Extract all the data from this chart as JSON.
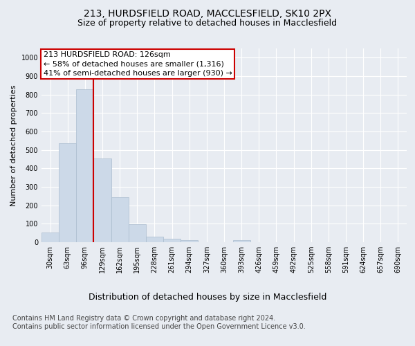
{
  "title_line1": "213, HURDSFIELD ROAD, MACCLESFIELD, SK10 2PX",
  "title_line2": "Size of property relative to detached houses in Macclesfield",
  "xlabel": "Distribution of detached houses by size in Macclesfield",
  "ylabel": "Number of detached properties",
  "bar_color": "#ccd9e8",
  "bar_edge_color": "#aabcce",
  "categories": [
    "30sqm",
    "63sqm",
    "96sqm",
    "129sqm",
    "162sqm",
    "195sqm",
    "228sqm",
    "261sqm",
    "294sqm",
    "327sqm",
    "360sqm",
    "393sqm",
    "426sqm",
    "459sqm",
    "492sqm",
    "525sqm",
    "558sqm",
    "591sqm",
    "624sqm",
    "657sqm",
    "690sqm"
  ],
  "values": [
    52,
    535,
    830,
    455,
    245,
    97,
    30,
    18,
    10,
    0,
    0,
    10,
    0,
    0,
    0,
    0,
    0,
    0,
    0,
    0,
    0
  ],
  "vline_bin_index": 3,
  "vline_color": "#cc0000",
  "annotation_text": "213 HURDSFIELD ROAD: 126sqm\n← 58% of detached houses are smaller (1,316)\n41% of semi-detached houses are larger (930) →",
  "annotation_box_color": "white",
  "annotation_box_edge_color": "#cc0000",
  "ylim": [
    0,
    1050
  ],
  "yticks": [
    0,
    100,
    200,
    300,
    400,
    500,
    600,
    700,
    800,
    900,
    1000
  ],
  "footer_text": "Contains HM Land Registry data © Crown copyright and database right 2024.\nContains public sector information licensed under the Open Government Licence v3.0.",
  "background_color": "#e8ecf2",
  "plot_background_color": "#e8ecf2",
  "grid_color": "white",
  "title_fontsize": 10,
  "subtitle_fontsize": 9,
  "annotation_fontsize": 8,
  "footer_fontsize": 7,
  "ylabel_fontsize": 8,
  "xlabel_fontsize": 9,
  "tick_fontsize": 7
}
